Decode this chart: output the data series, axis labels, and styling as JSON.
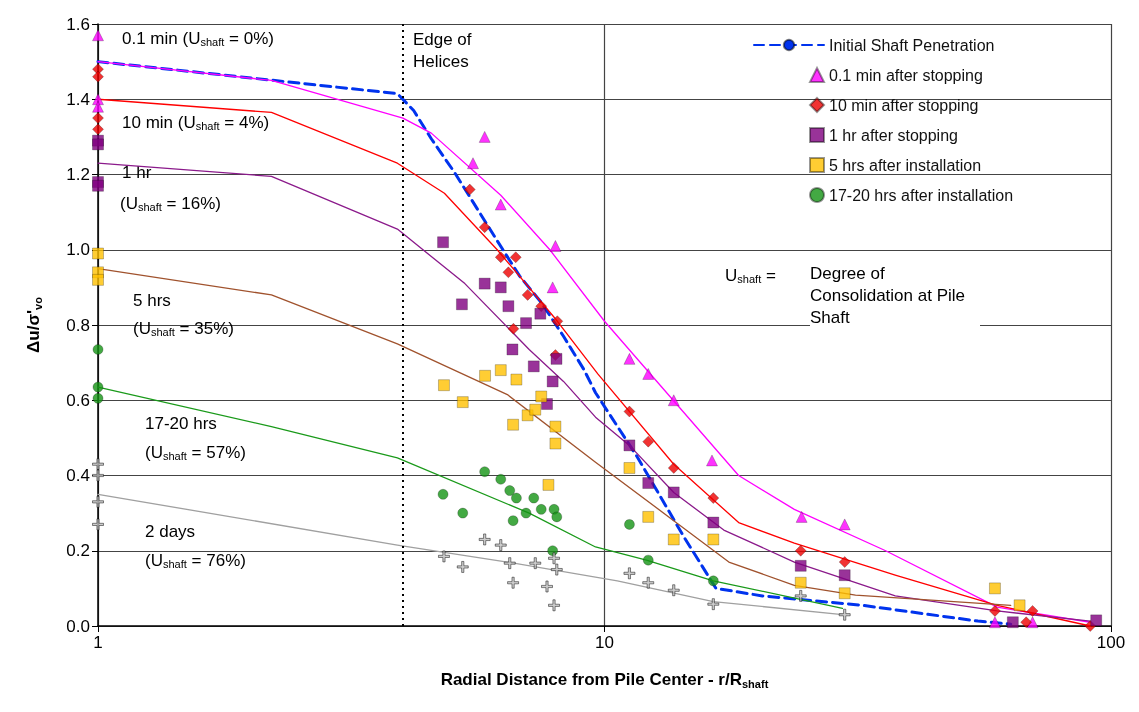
{
  "chart_data": {
    "type": "scatter",
    "xlabel": "Radial Distance from Pile Center - r/R$_{shaft}$",
    "ylabel": "Δu/σ'$_{vo}$",
    "log": "x",
    "xlim": [
      1,
      100
    ],
    "xticks": [
      1,
      10,
      100
    ],
    "ylim": [
      0,
      1.6
    ],
    "yticks": [
      {
        "value": 0,
        "label": "0.0"
      },
      0.2,
      0.4,
      0.6,
      0.8,
      {
        "value": 1,
        "label": "1.0"
      },
      1.2,
      1.4,
      1.6
    ],
    "grid": true,
    "legend": "top right",
    "series": [
      {
        "name": "Initial Shaft Penetration",
        "type": "line",
        "color": "#0033ee",
        "marker": "none",
        "line_style": "dashed",
        "x": [
          1,
          3.9,
          4.2,
          4.55,
          5.06,
          5.6,
          6.1,
          6.8,
          7.5,
          8.3,
          9.12,
          9.6,
          11.6,
          14.3,
          16.6,
          20.5,
          32.3,
          54.6,
          63.4
        ],
        "values": [
          1.5,
          1.415,
          1.37,
          1.295,
          1.205,
          1.11,
          1.03,
          0.93,
          0.86,
          0.77,
          0.68,
          0.62,
          0.45,
          0.24,
          0.1,
          0.08,
          0.055,
          0.013,
          0.005
        ]
      },
      {
        "name": "0.1 min after stopping",
        "color": "#ff00ff",
        "marker": "triangle",
        "x": [
          1,
          1,
          1,
          5.5,
          5.8,
          6.24,
          8.0,
          7.9,
          11.2,
          12.2,
          13.7,
          16.3,
          24.5,
          29.8,
          59,
          70
        ],
        "values": [
          1.57,
          1.4,
          1.38,
          1.23,
          1.3,
          1.12,
          1.01,
          0.9,
          0.71,
          0.67,
          0.6,
          0.44,
          0.29,
          0.27,
          0.01,
          0.01
        ]
      },
      {
        "name": "10 min after stopping",
        "color": "#ee0000",
        "marker": "diamond",
        "x": [
          1,
          1,
          1,
          1,
          5.42,
          5.8,
          6.24,
          6.68,
          6.46,
          7.05,
          7.5,
          8.07,
          6.61,
          8.0,
          11.2,
          12.2,
          13.7,
          16.4,
          24.4,
          29.8,
          59,
          70,
          68,
          91
        ],
        "values": [
          1.48,
          1.46,
          1.35,
          1.32,
          1.16,
          1.06,
          0.98,
          0.98,
          0.94,
          0.88,
          0.85,
          0.81,
          0.79,
          0.72,
          0.57,
          0.49,
          0.42,
          0.34,
          0.2,
          0.17,
          0.04,
          0.04,
          0.01,
          0
        ]
      },
      {
        "name": "1 hr after stopping",
        "color": "#800080",
        "marker": "square",
        "x": [
          1,
          1,
          1,
          1,
          4.8,
          5.8,
          6.24,
          5.23,
          6.46,
          7.47,
          7.0,
          6.58,
          7.25,
          8.04,
          7.9,
          7.7,
          11.2,
          12.2,
          13.7,
          16.4,
          24.4,
          29.8,
          64,
          93.5
        ],
        "values": [
          1.29,
          1.28,
          1.18,
          1.17,
          1.02,
          0.91,
          0.9,
          0.855,
          0.85,
          0.83,
          0.805,
          0.735,
          0.69,
          0.71,
          0.65,
          0.59,
          0.48,
          0.38,
          0.355,
          0.275,
          0.16,
          0.135,
          0.01,
          0.015
        ]
      },
      {
        "name": "5 hrs after installation",
        "color": "#ffc000",
        "marker": "square",
        "x": [
          1,
          1,
          1,
          4.82,
          5.25,
          5.81,
          6.24,
          6.7,
          7.5,
          7.05,
          6.6,
          7.3,
          8.0,
          8.0,
          7.75,
          11.2,
          12.2,
          13.7,
          16.4,
          24.4,
          29.8,
          59,
          66
        ],
        "values": [
          0.99,
          0.94,
          0.92,
          0.64,
          0.595,
          0.665,
          0.68,
          0.655,
          0.61,
          0.56,
          0.535,
          0.575,
          0.53,
          0.485,
          0.375,
          0.42,
          0.29,
          0.23,
          0.23,
          0.115,
          0.087,
          0.1,
          0.055
        ]
      },
      {
        "name": "17-20 hrs after installation",
        "color": "#149414",
        "marker": "circle",
        "x": [
          1,
          1,
          1,
          4.8,
          5.25,
          5.8,
          6.24,
          6.5,
          6.7,
          6.6,
          7.0,
          7.25,
          7.5,
          7.95,
          8.05,
          7.9,
          11.2,
          12.2,
          16.4
        ],
        "values": [
          0.735,
          0.635,
          0.605,
          0.35,
          0.3,
          0.41,
          0.39,
          0.36,
          0.34,
          0.28,
          0.3,
          0.34,
          0.31,
          0.31,
          0.29,
          0.2,
          0.27,
          0.175,
          0.12
        ]
      },
      {
        "color": "#c0c0c0",
        "marker": "cross",
        "x": [
          1,
          1,
          1,
          1,
          4.82,
          5.25,
          5.8,
          6.24,
          6.5,
          6.6,
          7.3,
          7.95,
          8.05,
          7.7,
          7.95,
          11.2,
          12.2,
          13.7,
          16.4,
          24.4,
          29.8
        ],
        "values": [
          0.43,
          0.4,
          0.33,
          0.27,
          0.185,
          0.157,
          0.23,
          0.215,
          0.167,
          0.115,
          0.167,
          0.18,
          0.15,
          0.105,
          0.055,
          0.14,
          0.115,
          0.095,
          0.058,
          0.08,
          0.03
        ]
      },
      {
        "type": "line",
        "color": "#ff00ff",
        "marker": "none",
        "line_style": "solid",
        "x": [
          1,
          2.2,
          4.0,
          4.55,
          6.24,
          7.8,
          10,
          18.4,
          23.7,
          35.9,
          59.6,
          91
        ],
        "values": [
          1.5,
          1.45,
          1.35,
          1.31,
          1.145,
          1.0,
          0.81,
          0.4,
          0.31,
          0.2,
          0.05,
          0.01
        ]
      },
      {
        "type": "line",
        "color": "#ff0000",
        "marker": "none",
        "line_style": "solid",
        "x": [
          1,
          2.2,
          3.9,
          4.83,
          6.14,
          7.96,
          9.7,
          13.7,
          18.4,
          23.7,
          37.5,
          59.6,
          91
        ],
        "values": [
          1.4,
          1.365,
          1.23,
          1.15,
          1.0,
          0.82,
          0.67,
          0.43,
          0.275,
          0.22,
          0.135,
          0.055,
          0
        ]
      },
      {
        "type": "line",
        "color": "#8b1a8b",
        "marker": "none",
        "line_style": "solid",
        "x": [
          1,
          2.2,
          3.9,
          5.3,
          7.1,
          8.3,
          9.6,
          11.2,
          13.7,
          17.2,
          23.7,
          37.5,
          59.6,
          91
        ],
        "values": [
          1.23,
          1.195,
          1.055,
          0.91,
          0.735,
          0.65,
          0.555,
          0.48,
          0.355,
          0.255,
          0.17,
          0.08,
          0.04,
          0.013
        ]
      },
      {
        "type": "line",
        "color": "#a0522d",
        "marker": "none",
        "line_style": "solid",
        "x": [
          1,
          2.2,
          3.9,
          6.43,
          9.6,
          13.7,
          17.6,
          23.7,
          31.3,
          63.4
        ],
        "values": [
          0.95,
          0.88,
          0.75,
          0.615,
          0.435,
          0.28,
          0.17,
          0.108,
          0.082,
          0.055
        ]
      },
      {
        "type": "line",
        "color": "#1a9a1a",
        "marker": "none",
        "line_style": "solid",
        "x": [
          1,
          2.2,
          3.9,
          7.1,
          9.6,
          12.1,
          16.4,
          29.5
        ],
        "values": [
          0.635,
          0.53,
          0.447,
          0.3,
          0.21,
          0.175,
          0.12,
          0.047
        ]
      },
      {
        "type": "line",
        "color": "#a0a0a0",
        "marker": "none",
        "line_style": "solid",
        "x": [
          1,
          3.9,
          6.43,
          10.6,
          16.4,
          29.5
        ],
        "values": [
          0.35,
          0.215,
          0.17,
          0.12,
          0.065,
          0.03
        ]
      }
    ],
    "ref_lines": [
      {
        "axis": "x",
        "value": 4,
        "label": "Edge of Helices",
        "color": "#000000",
        "line_style": "dotted"
      }
    ],
    "annotations": [
      "0.1 min (U$_{shaft}$ = 0%)",
      "10 min (U$_{shaft}$ = 4%)",
      "1 hr",
      "(U$_{shaft}$ = 16%)",
      "5 hrs",
      "(U$_{shaft}$ = 35%)",
      "17-20 hrs",
      "(U$_{shaft}$ = 57%)",
      "2 days",
      "(U$_{shaft}$ = 76%)",
      "U$_{shaft}$ =",
      "Degree of Consolidation at Pile Shaft"
    ]
  }
}
